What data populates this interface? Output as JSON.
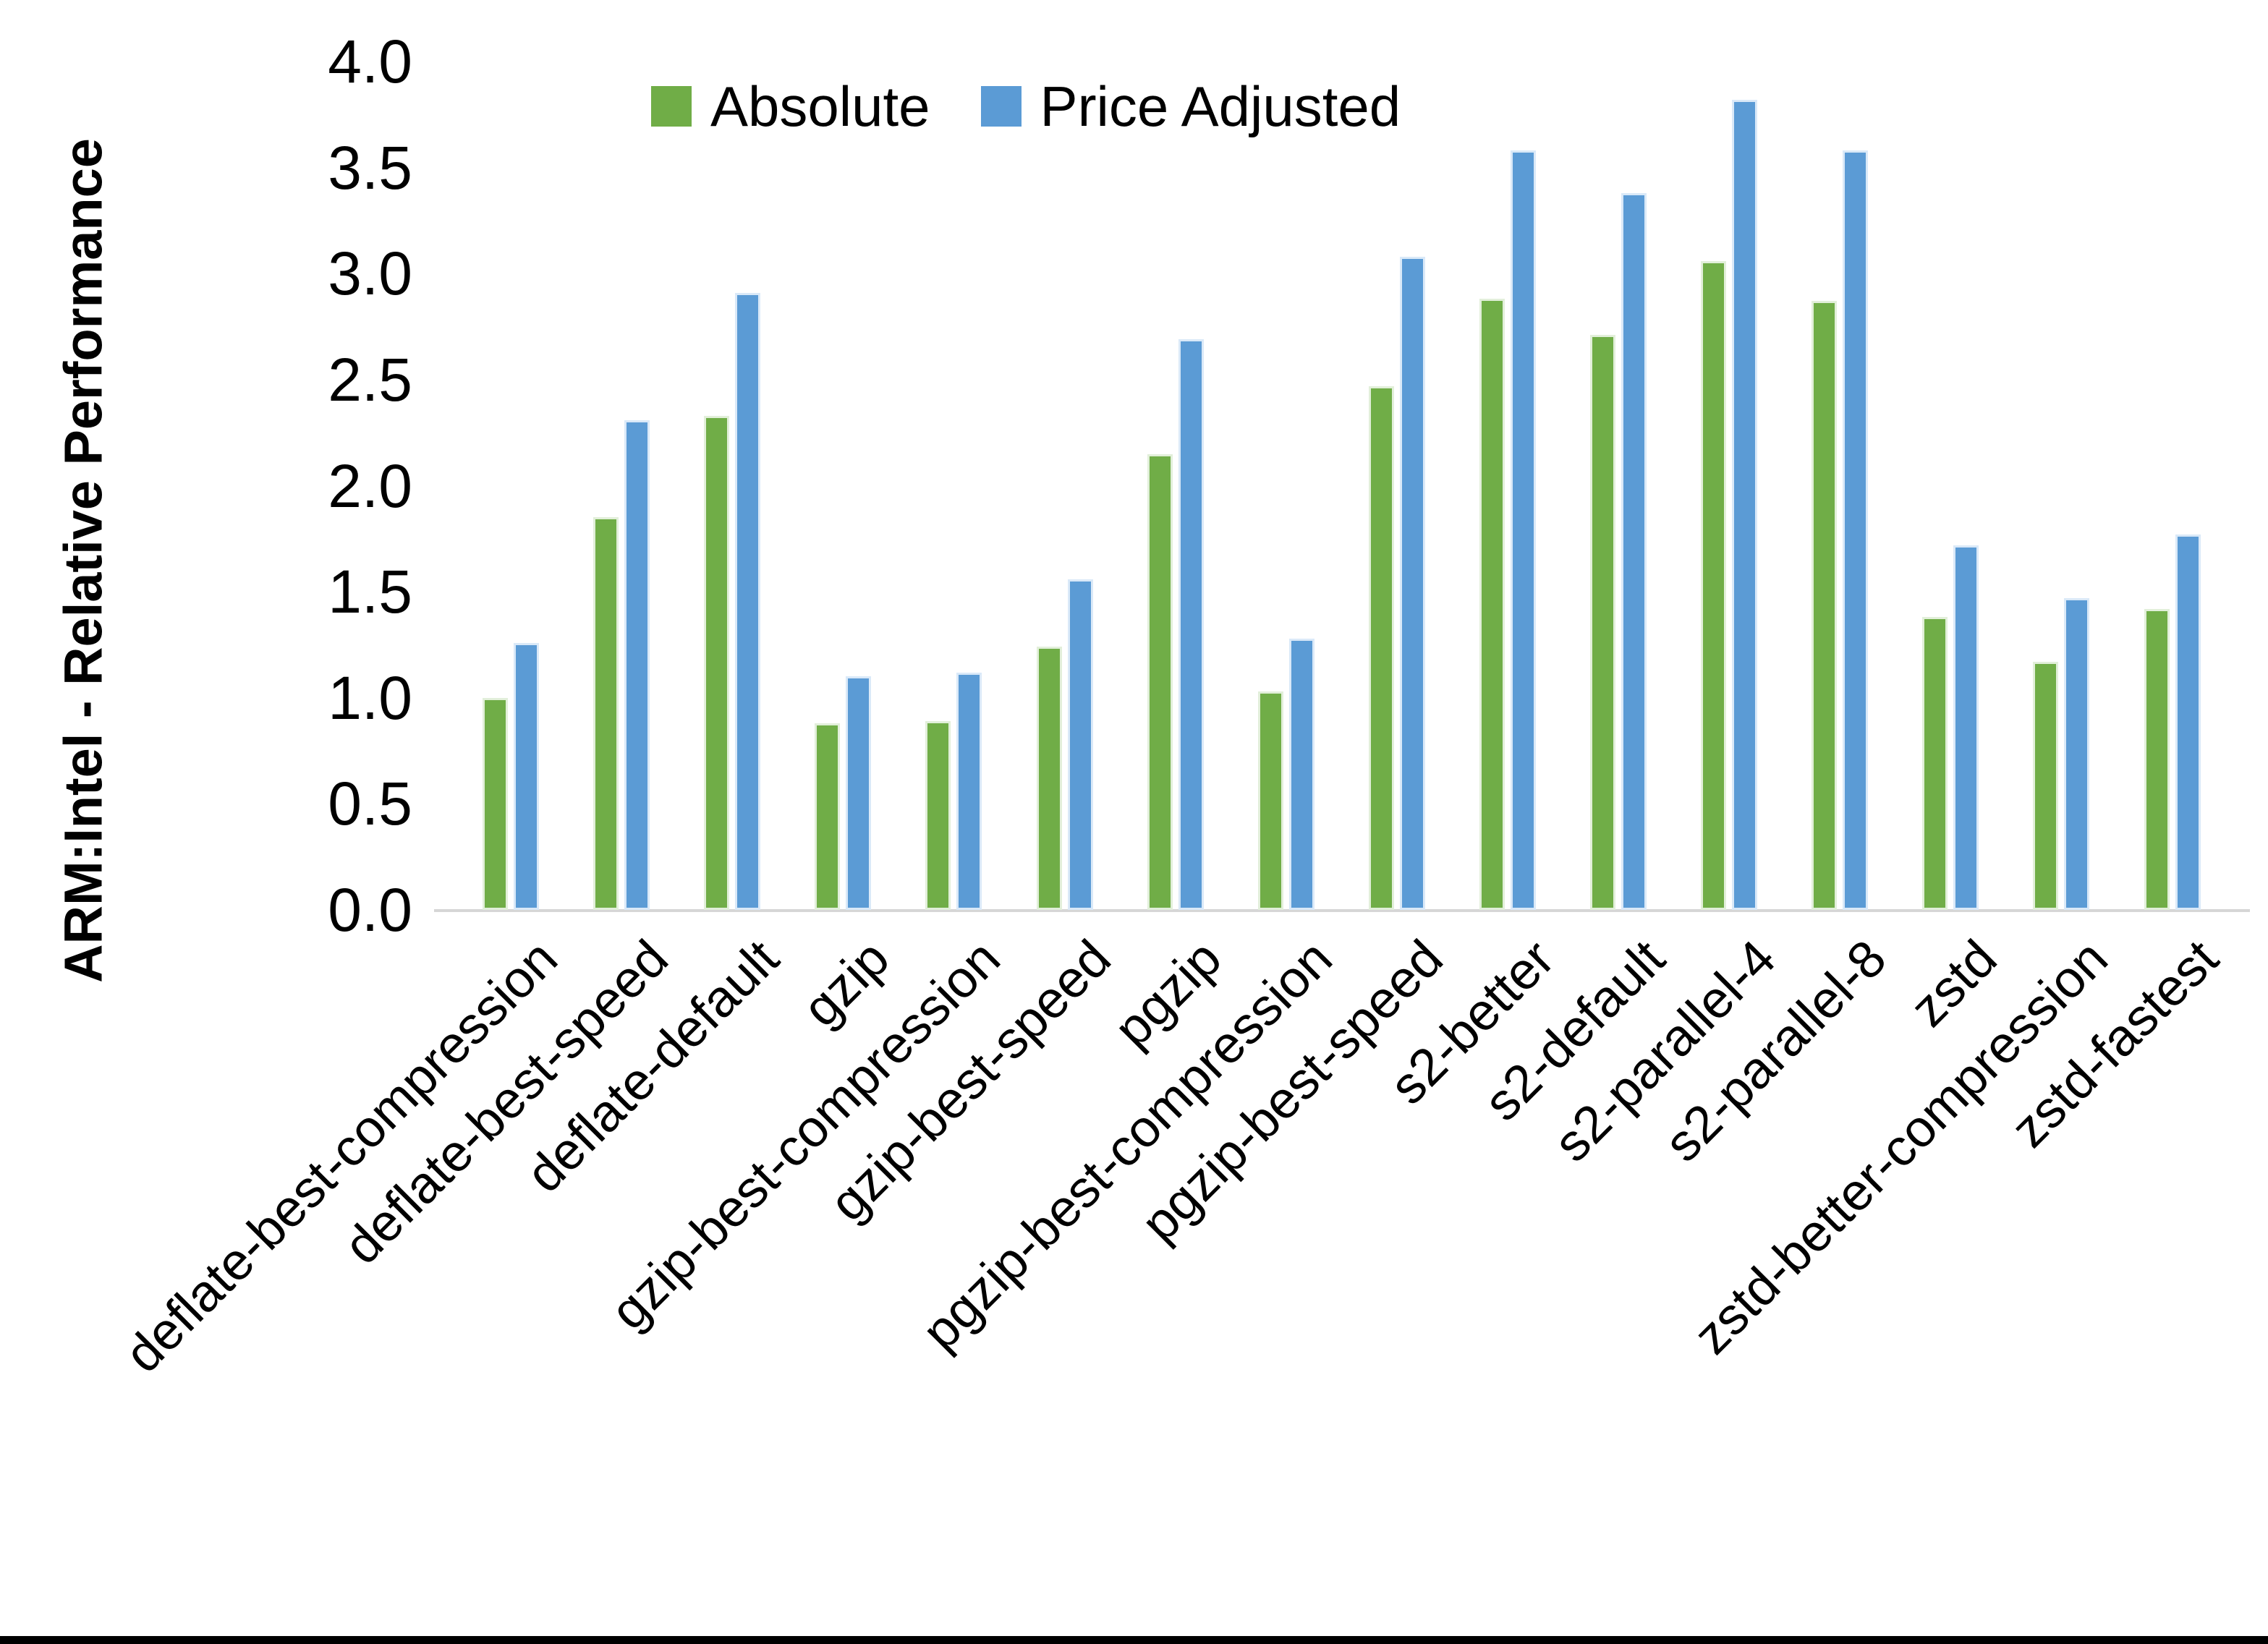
{
  "chart_data": {
    "type": "bar",
    "title": "",
    "xlabel": "",
    "ylabel": "ARM:Intel - Relative Performance",
    "ylim": [
      0,
      4
    ],
    "ytick_step": 0.5,
    "ytick_labels": [
      "0.0",
      "0.5",
      "1.0",
      "1.5",
      "2.0",
      "2.5",
      "3.0",
      "3.5",
      "4.0"
    ],
    "grid": false,
    "legend_position": "top-center",
    "categories": [
      "deflate-best-compression",
      "deflate-best-speed",
      "deflate-default",
      "gzip",
      "gzip-best-compression",
      "gzip-best-speed",
      "pgzip",
      "pgzip-best-compression",
      "pgzip-best-speed",
      "s2-better",
      "s2-default",
      "s2-parallel-4",
      "s2-parallel-8",
      "zstd",
      "zstd-better-compression",
      "zstd-fastest"
    ],
    "series": [
      {
        "name": "Absolute",
        "color": "#70AD47",
        "values": [
          1.0,
          1.85,
          2.33,
          0.88,
          0.89,
          1.24,
          2.15,
          1.03,
          2.47,
          2.88,
          2.71,
          3.06,
          2.87,
          1.38,
          1.17,
          1.42
        ]
      },
      {
        "name": "Price Adjusted",
        "color": "#5B9BD5",
        "values": [
          1.26,
          2.31,
          2.91,
          1.1,
          1.12,
          1.56,
          2.69,
          1.28,
          3.08,
          3.58,
          3.38,
          3.82,
          3.58,
          1.72,
          1.47,
          1.77
        ]
      }
    ]
  },
  "page": {
    "background_color": "#FFFFFF",
    "bottom_border_color": "#000000",
    "axis_line_color": "#D6D6D6"
  }
}
